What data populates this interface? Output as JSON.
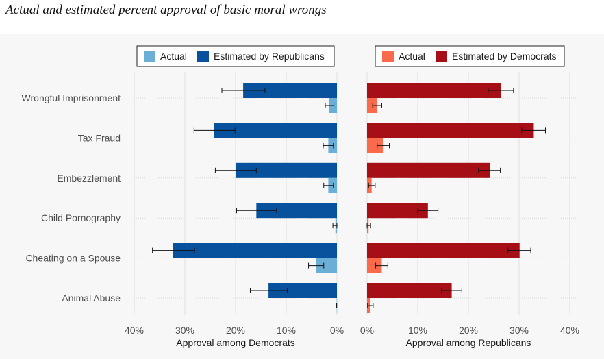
{
  "title": "Actual and estimated percent approval of basic moral wrongs",
  "colors": {
    "actual_left": "#6baed6",
    "estimated_left": "#08519c",
    "actual_right": "#fb6a4a",
    "estimated_right": "#a50f15",
    "panel_bg": "#f7f7f7"
  },
  "chart_data": [
    {
      "type": "bar",
      "orientation": "horizontal",
      "direction": "reversed",
      "categories": [
        "Wrongful Imprisonment",
        "Tax Fraud",
        "Embezzlement",
        "Child Pornography",
        "Cheating on a Spouse",
        "Animal Abuse"
      ],
      "series": [
        {
          "name": "Estimated by Republicans",
          "values": [
            18.5,
            24.2,
            20.0,
            15.9,
            32.3,
            13.5
          ],
          "err_low": [
            22.7,
            28.2,
            24.0,
            19.8,
            36.4,
            17.1
          ],
          "err_high": [
            14.2,
            20.1,
            15.9,
            11.9,
            28.1,
            9.8
          ]
        },
        {
          "name": "Actual",
          "values": [
            1.5,
            1.7,
            1.7,
            0.3,
            4.1,
            0.05
          ],
          "err_low": [
            2.3,
            2.7,
            2.6,
            0.8,
            5.6,
            0.05
          ],
          "err_high": [
            0.6,
            0.7,
            0.7,
            0.0,
            2.6,
            0.05
          ]
        }
      ],
      "xlabel": "Approval among Democrats",
      "xlim": [
        0,
        40
      ],
      "x_ticks": [
        "40%",
        "30%",
        "20%",
        "10%",
        "0%"
      ],
      "legend_position": "top",
      "grid": true
    },
    {
      "type": "bar",
      "orientation": "horizontal",
      "categories": [
        "Wrongful Imprisonment",
        "Tax Fraud",
        "Embezzlement",
        "Child Pornography",
        "Cheating on a Spouse",
        "Animal Abuse"
      ],
      "series": [
        {
          "name": "Estimated by Democrats",
          "values": [
            26.4,
            32.9,
            24.2,
            12.0,
            30.1,
            16.7
          ],
          "err_low": [
            23.9,
            30.5,
            22.0,
            10.0,
            27.8,
            14.7
          ],
          "err_high": [
            28.9,
            35.2,
            26.3,
            14.0,
            32.3,
            18.7
          ]
        },
        {
          "name": "Actual",
          "values": [
            2.0,
            3.2,
            0.9,
            0.3,
            2.9,
            0.6
          ],
          "err_low": [
            1.1,
            2.0,
            0.3,
            0.0,
            1.7,
            0.1
          ],
          "err_high": [
            2.9,
            4.4,
            1.6,
            0.7,
            4.1,
            1.2
          ]
        }
      ],
      "xlabel": "Approval among Republicans",
      "xlim": [
        0,
        40
      ],
      "x_ticks": [
        "0%",
        "10%",
        "20%",
        "30%",
        "40%"
      ],
      "legend_position": "top",
      "grid": true
    }
  ]
}
